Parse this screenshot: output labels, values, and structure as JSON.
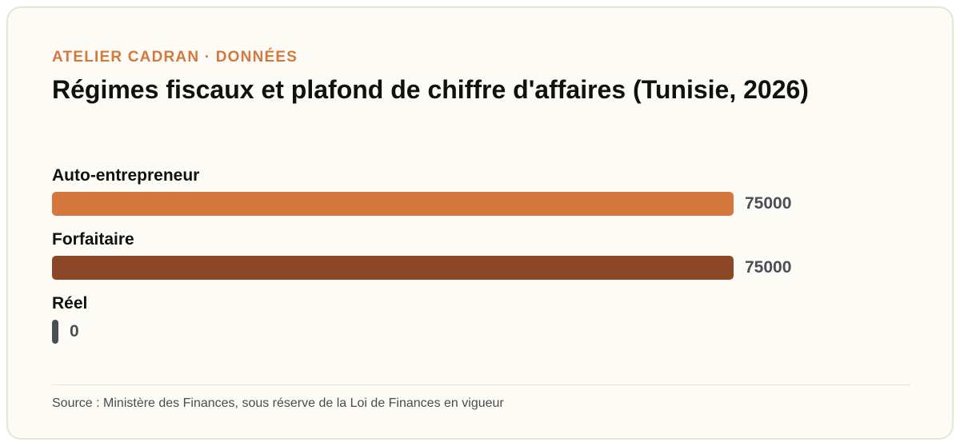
{
  "eyebrow": "ATELIER CADRAN · DONNÉES",
  "title": "Régimes fiscaux et plafond de chiffre d'affaires (Tunisie, 2026)",
  "source": "Source : Ministère des Finances, sous réserve de la Loi de Finances en vigueur",
  "colors": {
    "accent": "#d4783d",
    "series": [
      "#d4783d",
      "#8b4726",
      "#4a4f55"
    ]
  },
  "chart_data": {
    "type": "bar",
    "orientation": "horizontal",
    "title": "Régimes fiscaux et plafond de chiffre d'affaires (Tunisie, 2026)",
    "categories": [
      "Auto-entrepreneur",
      "Forfaitaire",
      "Réel"
    ],
    "values": [
      75000,
      75000,
      0
    ],
    "value_labels": [
      "75000",
      "75000",
      "0"
    ],
    "xlim": [
      0,
      75000
    ],
    "grid": false,
    "legend": "none"
  }
}
